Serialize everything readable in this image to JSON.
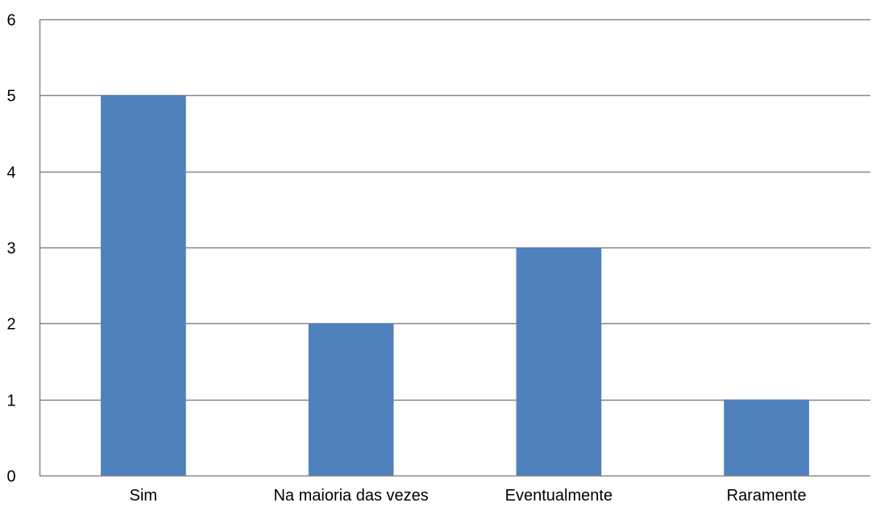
{
  "chart_data": {
    "type": "bar",
    "categories": [
      "Sim",
      "Na maioria das vezes",
      "Eventualmente",
      "Raramente"
    ],
    "values": [
      5,
      2,
      3,
      1
    ],
    "ylim": [
      0,
      6
    ],
    "yticks": [
      "0",
      "1",
      "2",
      "3",
      "4",
      "5",
      "6"
    ],
    "grid": true,
    "legend": "none",
    "bar_color": "#4F81BD",
    "grid_color": "#868686"
  }
}
